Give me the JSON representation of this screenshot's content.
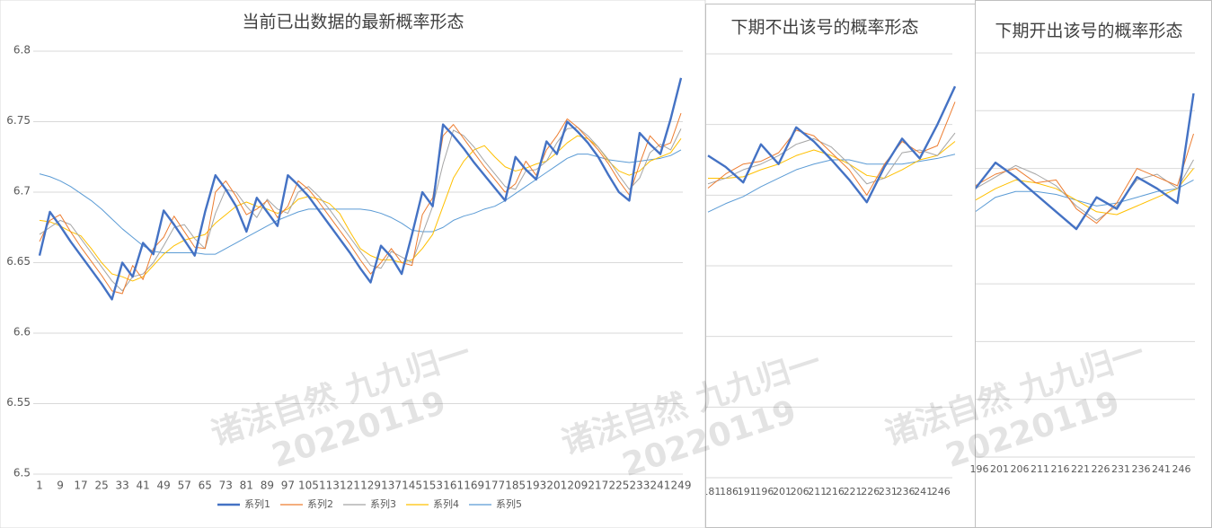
{
  "watermark": {
    "line1": "诸法自然 九九归一",
    "line2": "20220119"
  },
  "chart_data": [
    {
      "type": "line",
      "title": "当前已出数据的最新概率形态",
      "x": [
        1,
        5,
        9,
        13,
        17,
        21,
        25,
        29,
        33,
        37,
        41,
        45,
        49,
        53,
        57,
        61,
        65,
        69,
        73,
        77,
        81,
        85,
        89,
        93,
        97,
        101,
        105,
        109,
        113,
        117,
        121,
        125,
        129,
        133,
        137,
        141,
        145,
        149,
        153,
        157,
        161,
        165,
        169,
        173,
        177,
        181,
        185,
        189,
        193,
        197,
        201,
        205,
        209,
        213,
        217,
        221,
        225,
        229,
        233,
        237,
        241,
        245,
        249
      ],
      "xlim": [
        1,
        249
      ],
      "xticks": [
        1,
        9,
        17,
        25,
        33,
        41,
        49,
        57,
        65,
        73,
        81,
        89,
        97,
        105,
        113,
        121,
        129,
        137,
        145,
        153,
        161,
        169,
        177,
        185,
        193,
        201,
        209,
        217,
        225,
        233,
        241,
        249
      ],
      "ylim": [
        6.5,
        6.8
      ],
      "yticks": [
        6.5,
        6.55,
        6.6,
        6.65,
        6.7,
        6.75,
        6.8
      ],
      "grid": true,
      "legend": "bottom",
      "series": [
        {
          "name": "系列1",
          "color": "#4472c4",
          "values": [
            6.655,
            6.686,
            6.676,
            6.665,
            6.655,
            6.645,
            6.635,
            6.624,
            6.65,
            6.64,
            6.664,
            6.656,
            6.687,
            6.677,
            6.666,
            6.655,
            6.686,
            6.712,
            6.702,
            6.69,
            6.672,
            6.696,
            6.686,
            6.676,
            6.712,
            6.705,
            6.697,
            6.687,
            6.677,
            6.667,
            6.657,
            6.646,
            6.636,
            6.662,
            6.654,
            6.642,
            6.67,
            6.7,
            6.69,
            6.748,
            6.74,
            6.731,
            6.721,
            6.712,
            6.703,
            6.694,
            6.725,
            6.716,
            6.709,
            6.736,
            6.727,
            6.75,
            6.743,
            6.735,
            6.725,
            6.712,
            6.7,
            6.694,
            6.742,
            6.734,
            6.727,
            6.752,
            6.781
          ]
        },
        {
          "name": "系列2",
          "color": "#ed7d31",
          "values": [
            6.665,
            6.68,
            6.684,
            6.672,
            6.661,
            6.651,
            6.641,
            6.63,
            6.628,
            6.648,
            6.638,
            6.66,
            6.668,
            6.683,
            6.672,
            6.661,
            6.66,
            6.7,
            6.708,
            6.697,
            6.684,
            6.688,
            6.694,
            6.682,
            6.69,
            6.708,
            6.702,
            6.693,
            6.683,
            6.673,
            6.663,
            6.652,
            6.642,
            6.65,
            6.66,
            6.65,
            6.648,
            6.684,
            6.696,
            6.74,
            6.748,
            6.738,
            6.728,
            6.718,
            6.709,
            6.7,
            6.706,
            6.722,
            6.712,
            6.73,
            6.74,
            6.752,
            6.746,
            6.738,
            6.73,
            6.72,
            6.708,
            6.698,
            6.72,
            6.74,
            6.732,
            6.735,
            6.756
          ]
        },
        {
          "name": "系列3",
          "color": "#a5a5a5",
          "values": [
            6.67,
            6.675,
            6.68,
            6.677,
            6.667,
            6.657,
            6.647,
            6.637,
            6.63,
            6.64,
            6.642,
            6.65,
            6.662,
            6.675,
            6.677,
            6.667,
            6.66,
            6.685,
            6.702,
            6.7,
            6.69,
            6.682,
            6.695,
            6.688,
            6.685,
            6.7,
            6.704,
            6.697,
            6.688,
            6.678,
            6.668,
            6.658,
            6.648,
            6.646,
            6.658,
            6.654,
            6.65,
            6.67,
            6.69,
            6.72,
            6.744,
            6.74,
            6.732,
            6.722,
            6.713,
            6.704,
            6.702,
            6.715,
            6.716,
            6.722,
            6.735,
            6.745,
            6.746,
            6.74,
            6.732,
            6.723,
            6.712,
            6.702,
            6.71,
            6.728,
            6.734,
            6.73,
            6.745
          ]
        },
        {
          "name": "系列4",
          "color": "#ffc000",
          "values": [
            6.68,
            6.679,
            6.676,
            6.672,
            6.669,
            6.66,
            6.65,
            6.642,
            6.64,
            6.637,
            6.64,
            6.648,
            6.656,
            6.662,
            6.666,
            6.668,
            6.67,
            6.678,
            6.684,
            6.69,
            6.693,
            6.69,
            6.688,
            6.685,
            6.688,
            6.695,
            6.697,
            6.695,
            6.692,
            6.685,
            6.672,
            6.66,
            6.655,
            6.652,
            6.652,
            6.65,
            6.652,
            6.66,
            6.67,
            6.69,
            6.71,
            6.722,
            6.73,
            6.733,
            6.725,
            6.718,
            6.715,
            6.717,
            6.72,
            6.722,
            6.728,
            6.735,
            6.74,
            6.738,
            6.732,
            6.722,
            6.715,
            6.712,
            6.715,
            6.722,
            6.725,
            6.728,
            6.738
          ]
        },
        {
          "name": "系列5",
          "color": "#5b9bd5",
          "values": [
            6.713,
            6.711,
            6.708,
            6.704,
            6.699,
            6.694,
            6.688,
            6.681,
            6.674,
            6.668,
            6.662,
            6.658,
            6.657,
            6.657,
            6.657,
            6.657,
            6.656,
            6.656,
            6.66,
            6.664,
            6.668,
            6.672,
            6.676,
            6.68,
            6.683,
            6.686,
            6.688,
            6.688,
            6.688,
            6.688,
            6.688,
            6.688,
            6.687,
            6.685,
            6.682,
            6.678,
            6.673,
            6.672,
            6.672,
            6.675,
            6.68,
            6.683,
            6.685,
            6.688,
            6.69,
            6.694,
            6.699,
            6.704,
            6.709,
            6.714,
            6.719,
            6.724,
            6.727,
            6.727,
            6.725,
            6.723,
            6.722,
            6.721,
            6.722,
            6.723,
            6.724,
            6.726,
            6.73
          ]
        }
      ]
    },
    {
      "type": "line",
      "title": "下期不出该号的概率形态",
      "x": [
        180,
        185,
        190,
        195,
        200,
        205,
        210,
        215,
        220,
        225,
        230,
        235,
        240,
        245,
        250
      ],
      "xlim": [
        180,
        250
      ],
      "xticks": [
        181,
        186,
        191,
        196,
        201,
        206,
        211,
        216,
        221,
        226,
        231,
        236,
        241,
        246
      ],
      "ylim": [
        6.5,
        6.8
      ],
      "grid": true,
      "series": [
        {
          "color": "#4472c4",
          "values": [
            6.728,
            6.72,
            6.709,
            6.736,
            6.722,
            6.748,
            6.738,
            6.725,
            6.711,
            6.695,
            6.72,
            6.74,
            6.726,
            6.75,
            6.777
          ]
        },
        {
          "color": "#ed7d31",
          "values": [
            6.705,
            6.715,
            6.722,
            6.724,
            6.73,
            6.746,
            6.742,
            6.73,
            6.718,
            6.7,
            6.722,
            6.738,
            6.73,
            6.735,
            6.766
          ]
        },
        {
          "color": "#a5a5a5",
          "values": [
            6.708,
            6.712,
            6.718,
            6.722,
            6.728,
            6.736,
            6.74,
            6.734,
            6.722,
            6.708,
            6.712,
            6.73,
            6.732,
            6.728,
            6.744
          ]
        },
        {
          "color": "#ffc000",
          "values": [
            6.712,
            6.712,
            6.713,
            6.718,
            6.722,
            6.728,
            6.732,
            6.728,
            6.722,
            6.714,
            6.712,
            6.718,
            6.725,
            6.728,
            6.738
          ]
        },
        {
          "color": "#5b9bd5",
          "values": [
            6.688,
            6.694,
            6.699,
            6.706,
            6.712,
            6.718,
            6.722,
            6.725,
            6.725,
            6.722,
            6.722,
            6.722,
            6.724,
            6.726,
            6.729
          ]
        }
      ]
    },
    {
      "type": "line",
      "title": "下期开出该号的概率形态",
      "x": [
        195,
        200,
        205,
        210,
        215,
        220,
        225,
        230,
        235,
        240,
        245,
        249
      ],
      "xlim": [
        195,
        252
      ],
      "xticks": [
        196,
        201,
        206,
        211,
        216,
        221,
        226,
        231,
        236,
        241,
        246
      ],
      "ylim": [
        6.64,
        6.78
      ],
      "grid": true,
      "series": [
        {
          "color": "#4472c4",
          "values": [
            6.733,
            6.742,
            6.737,
            6.731,
            6.725,
            6.719,
            6.73,
            6.726,
            6.737,
            6.733,
            6.728,
            6.766
          ]
        },
        {
          "color": "#ed7d31",
          "values": [
            6.734,
            6.738,
            6.74,
            6.735,
            6.736,
            6.726,
            6.721,
            6.728,
            6.74,
            6.737,
            6.734,
            6.752
          ]
        },
        {
          "color": "#a5a5a5",
          "values": [
            6.733,
            6.737,
            6.741,
            6.738,
            6.734,
            6.727,
            6.722,
            6.727,
            6.736,
            6.738,
            6.733,
            6.743
          ]
        },
        {
          "color": "#ffc000",
          "values": [
            6.729,
            6.733,
            6.736,
            6.735,
            6.733,
            6.729,
            6.725,
            6.724,
            6.727,
            6.73,
            6.733,
            6.74
          ]
        },
        {
          "color": "#5b9bd5",
          "values": [
            6.725,
            6.73,
            6.732,
            6.732,
            6.731,
            6.729,
            6.727,
            6.728,
            6.73,
            6.732,
            6.733,
            6.736
          ]
        }
      ]
    }
  ]
}
